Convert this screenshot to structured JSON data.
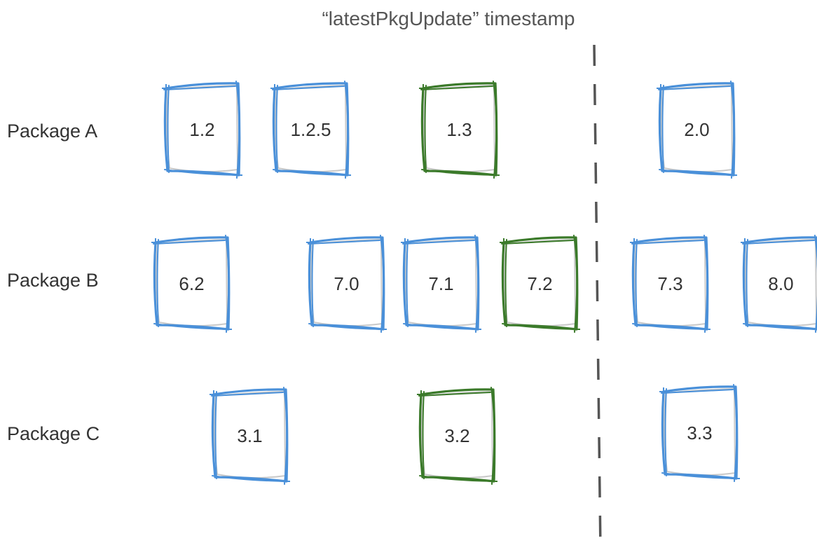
{
  "title": "“latestPkgUpdate” timestamp",
  "colors": {
    "released_before": "#4a90d9",
    "latest_before_timestamp": "#3b7a2a",
    "divider": "#555555",
    "text": "#333333"
  },
  "packages": [
    {
      "label": "Package A",
      "versions": [
        {
          "label": "1.2",
          "status": "released_before"
        },
        {
          "label": "1.2.5",
          "status": "released_before"
        },
        {
          "label": "1.3",
          "status": "latest_before_timestamp"
        },
        {
          "label": "2.0",
          "status": "released_before"
        }
      ]
    },
    {
      "label": "Package B",
      "versions": [
        {
          "label": "6.2",
          "status": "released_before"
        },
        {
          "label": "7.0",
          "status": "released_before"
        },
        {
          "label": "7.1",
          "status": "released_before"
        },
        {
          "label": "7.2",
          "status": "latest_before_timestamp"
        },
        {
          "label": "7.3",
          "status": "released_before"
        },
        {
          "label": "8.0",
          "status": "released_before"
        }
      ]
    },
    {
      "label": "Package C",
      "versions": [
        {
          "label": "3.1",
          "status": "released_before"
        },
        {
          "label": "3.2",
          "status": "latest_before_timestamp"
        },
        {
          "label": "3.3",
          "status": "released_before"
        }
      ]
    }
  ]
}
